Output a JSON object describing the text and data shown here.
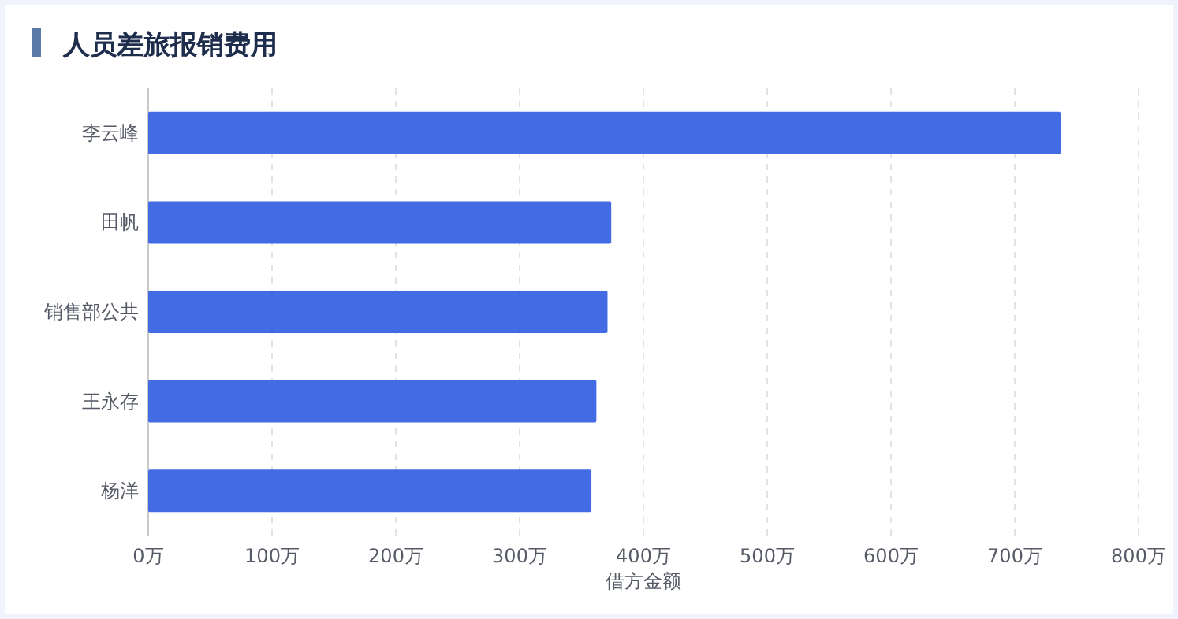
{
  "chart_data": {
    "type": "bar",
    "orientation": "horizontal",
    "title": "人员差旅报销费用",
    "xlabel": "借方金额",
    "categories": [
      "李云峰",
      "田帆",
      "销售部公共",
      "王永存",
      "杨洋"
    ],
    "values": [
      737,
      374,
      371,
      362,
      358
    ],
    "color": "#436be3",
    "xlim": [
      0,
      800
    ],
    "xticks": [
      {
        "value": 0,
        "label": "0万"
      },
      {
        "value": 100,
        "label": "100万"
      },
      {
        "value": 200,
        "label": "200万"
      },
      {
        "value": 300,
        "label": "300万"
      },
      {
        "value": 400,
        "label": "400万"
      },
      {
        "value": 500,
        "label": "500万"
      },
      {
        "value": 600,
        "label": "600万"
      },
      {
        "value": 700,
        "label": "700万"
      },
      {
        "value": 800,
        "label": "800万"
      }
    ],
    "grid": "x"
  }
}
